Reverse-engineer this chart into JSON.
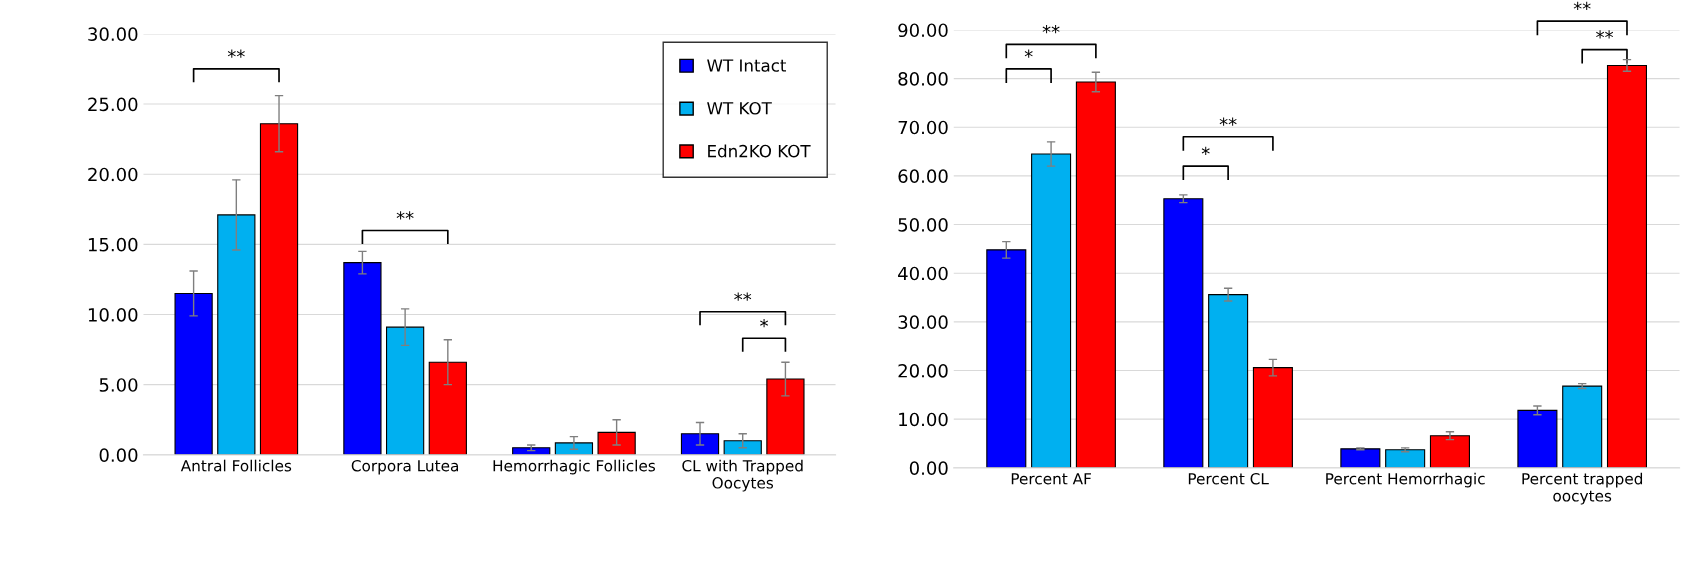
{
  "chart_data": [
    {
      "type": "bar",
      "categories": [
        "Antral Follicles",
        "Corpora Lutea",
        "Hemorrhagic Follicles",
        "CL with Trapped Oocytes"
      ],
      "series": [
        {
          "name": "WT Intact",
          "color": "#0000ff",
          "values": [
            11.5,
            13.7,
            0.5,
            1.5
          ],
          "errors": [
            1.6,
            0.8,
            0.2,
            0.8
          ]
        },
        {
          "name": "WT KOT",
          "color": "#00b0f0",
          "values": [
            17.1,
            9.1,
            0.85,
            1.0
          ],
          "errors": [
            2.5,
            1.3,
            0.45,
            0.5
          ]
        },
        {
          "name": "Edn2KO KOT",
          "color": "#ff0000",
          "values": [
            23.6,
            6.6,
            1.6,
            5.4
          ],
          "errors": [
            2.0,
            1.6,
            0.9,
            1.2
          ]
        }
      ],
      "ylim": [
        0,
        30
      ],
      "yticks": [
        {
          "value": 0,
          "label": "0.00"
        },
        {
          "value": 5,
          "label": "5.00"
        },
        {
          "value": 10,
          "label": "10.00"
        },
        {
          "value": 15,
          "label": "15.00"
        },
        {
          "value": 20,
          "label": "20.00"
        },
        {
          "value": 25,
          "label": "25.00"
        },
        {
          "value": 30,
          "label": "30.00"
        }
      ],
      "grid": "y",
      "legend": "top right",
      "annotations": [
        "**",
        "**",
        "**",
        "*"
      ]
    },
    {
      "type": "bar",
      "categories": [
        "Percent AF",
        "Percent CL",
        "Percent Hemorrhagic",
        "Percent trapped oocytes"
      ],
      "series": [
        {
          "color": "#0000ff",
          "values": [
            44.8,
            55.3,
            3.9,
            11.8
          ],
          "errors": [
            1.7,
            0.8,
            0.2,
            0.9
          ]
        },
        {
          "color": "#00b0f0",
          "values": [
            64.5,
            35.6,
            3.7,
            16.8
          ],
          "errors": [
            2.5,
            1.3,
            0.4,
            0.5
          ]
        },
        {
          "color": "#ff0000",
          "values": [
            79.3,
            20.6,
            6.6,
            82.7
          ],
          "errors": [
            2.0,
            1.7,
            0.8,
            1.2
          ]
        }
      ],
      "ylim": [
        0,
        90
      ],
      "yticks": [
        {
          "value": 0,
          "label": "0.00"
        },
        {
          "value": 10,
          "label": "10.00"
        },
        {
          "value": 20,
          "label": "20.00"
        },
        {
          "value": 30,
          "label": "30.00"
        },
        {
          "value": 40,
          "label": "40.00"
        },
        {
          "value": 50,
          "label": "50.00"
        },
        {
          "value": 60,
          "label": "60.00"
        },
        {
          "value": 70,
          "label": "70.00"
        },
        {
          "value": 80,
          "label": "80.00"
        },
        {
          "value": 90,
          "label": "90.00"
        }
      ],
      "grid": "y",
      "annotations": [
        "**",
        "*",
        "**",
        "*",
        "**",
        "**"
      ]
    }
  ]
}
